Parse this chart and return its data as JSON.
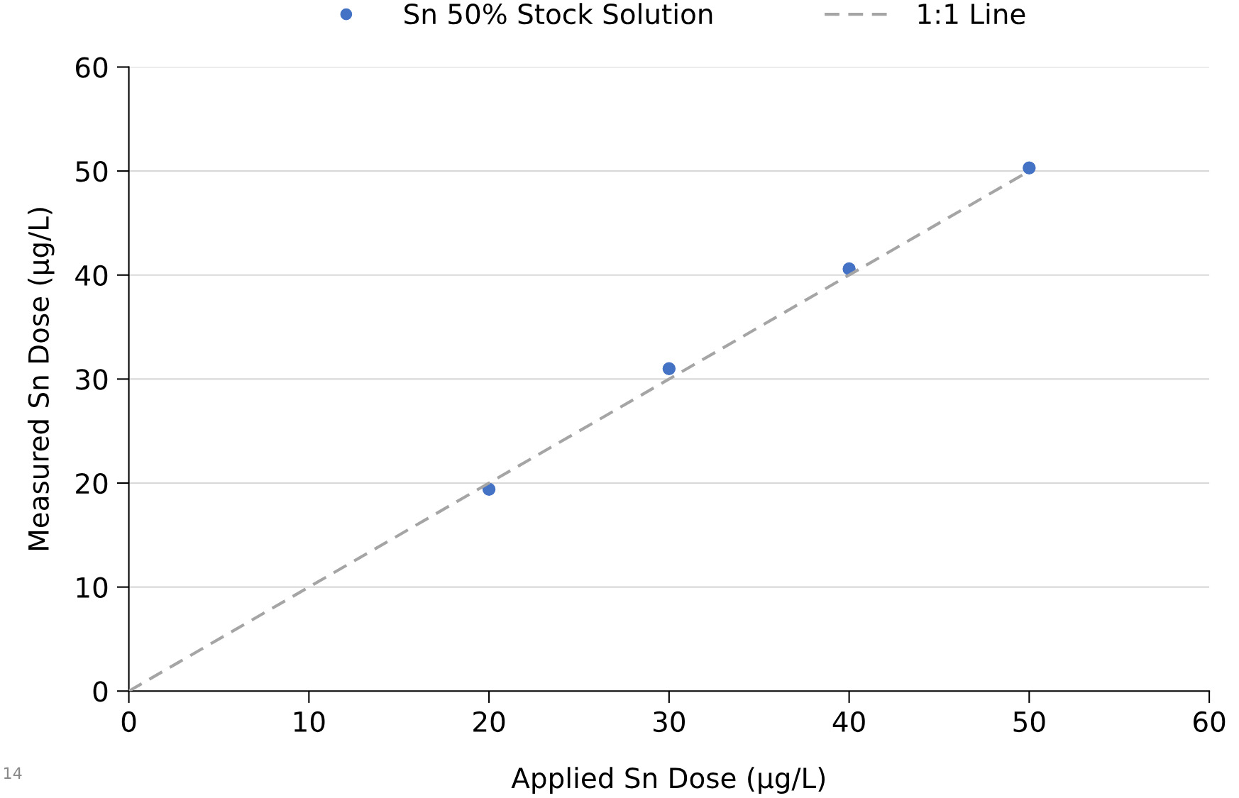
{
  "chart_data": {
    "type": "scatter",
    "xlabel": "Applied Sn Dose (µg/L)",
    "ylabel": "Measured Sn Dose (µg/L)",
    "series": [
      {
        "name": "Sn 50% Stock Solution",
        "color": "#4472c4",
        "x": [
          20,
          30,
          40,
          50
        ],
        "values": [
          19.4,
          31.0,
          40.6,
          50.3
        ],
        "marker": "circle"
      },
      {
        "name": "1:1 Line",
        "type": "line",
        "color": "#a5a5a5",
        "x": [
          0,
          50
        ],
        "values": [
          0,
          50
        ],
        "line_style": "dashed",
        "marker": "none"
      }
    ],
    "xlim": [
      0,
      60
    ],
    "xticks": [
      0,
      10,
      20,
      30,
      40,
      50,
      60
    ],
    "ylim": [
      0,
      60
    ],
    "yticks": [
      0,
      10,
      20,
      30,
      40,
      50,
      60
    ],
    "grid": "y",
    "legend": "top",
    "annotations": [
      "14"
    ]
  }
}
